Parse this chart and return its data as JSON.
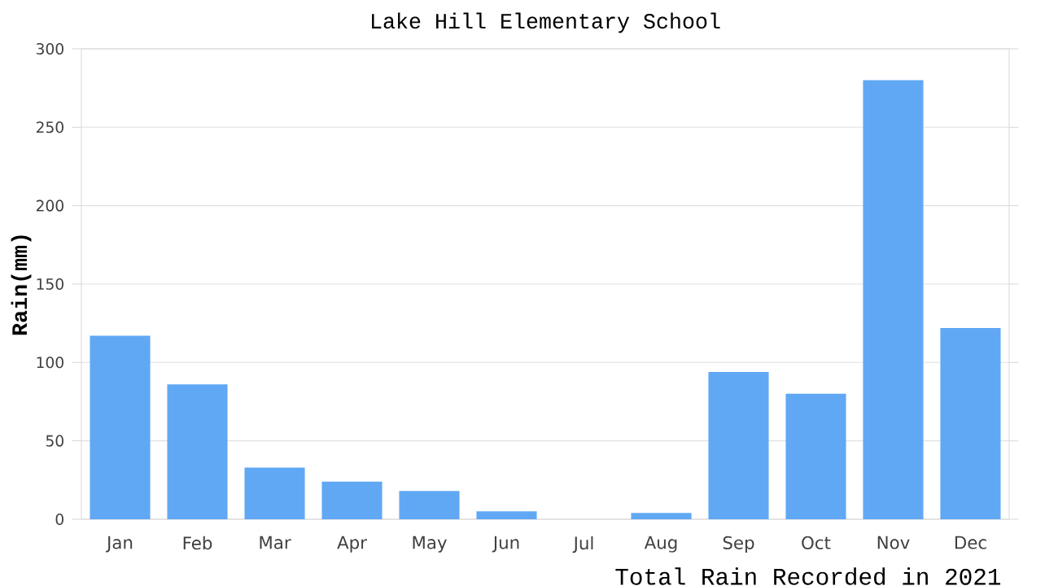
{
  "chart_data": {
    "type": "bar",
    "title": "Lake Hill Elementary School",
    "ylabel": "Rain(mm)",
    "categories": [
      "Jan",
      "Feb",
      "Mar",
      "Apr",
      "May",
      "Jun",
      "Jul",
      "Aug",
      "Sep",
      "Oct",
      "Nov",
      "Dec"
    ],
    "values": [
      117,
      86,
      33,
      24,
      18,
      5,
      0,
      4,
      94,
      80,
      280,
      122
    ],
    "color": "#60a8f4",
    "ylim": [
      0,
      300
    ],
    "yticks": [
      0,
      50,
      100,
      150,
      200,
      250,
      300
    ],
    "grid": "y",
    "annotations": [
      "Total Rain Recorded in 2021"
    ]
  }
}
